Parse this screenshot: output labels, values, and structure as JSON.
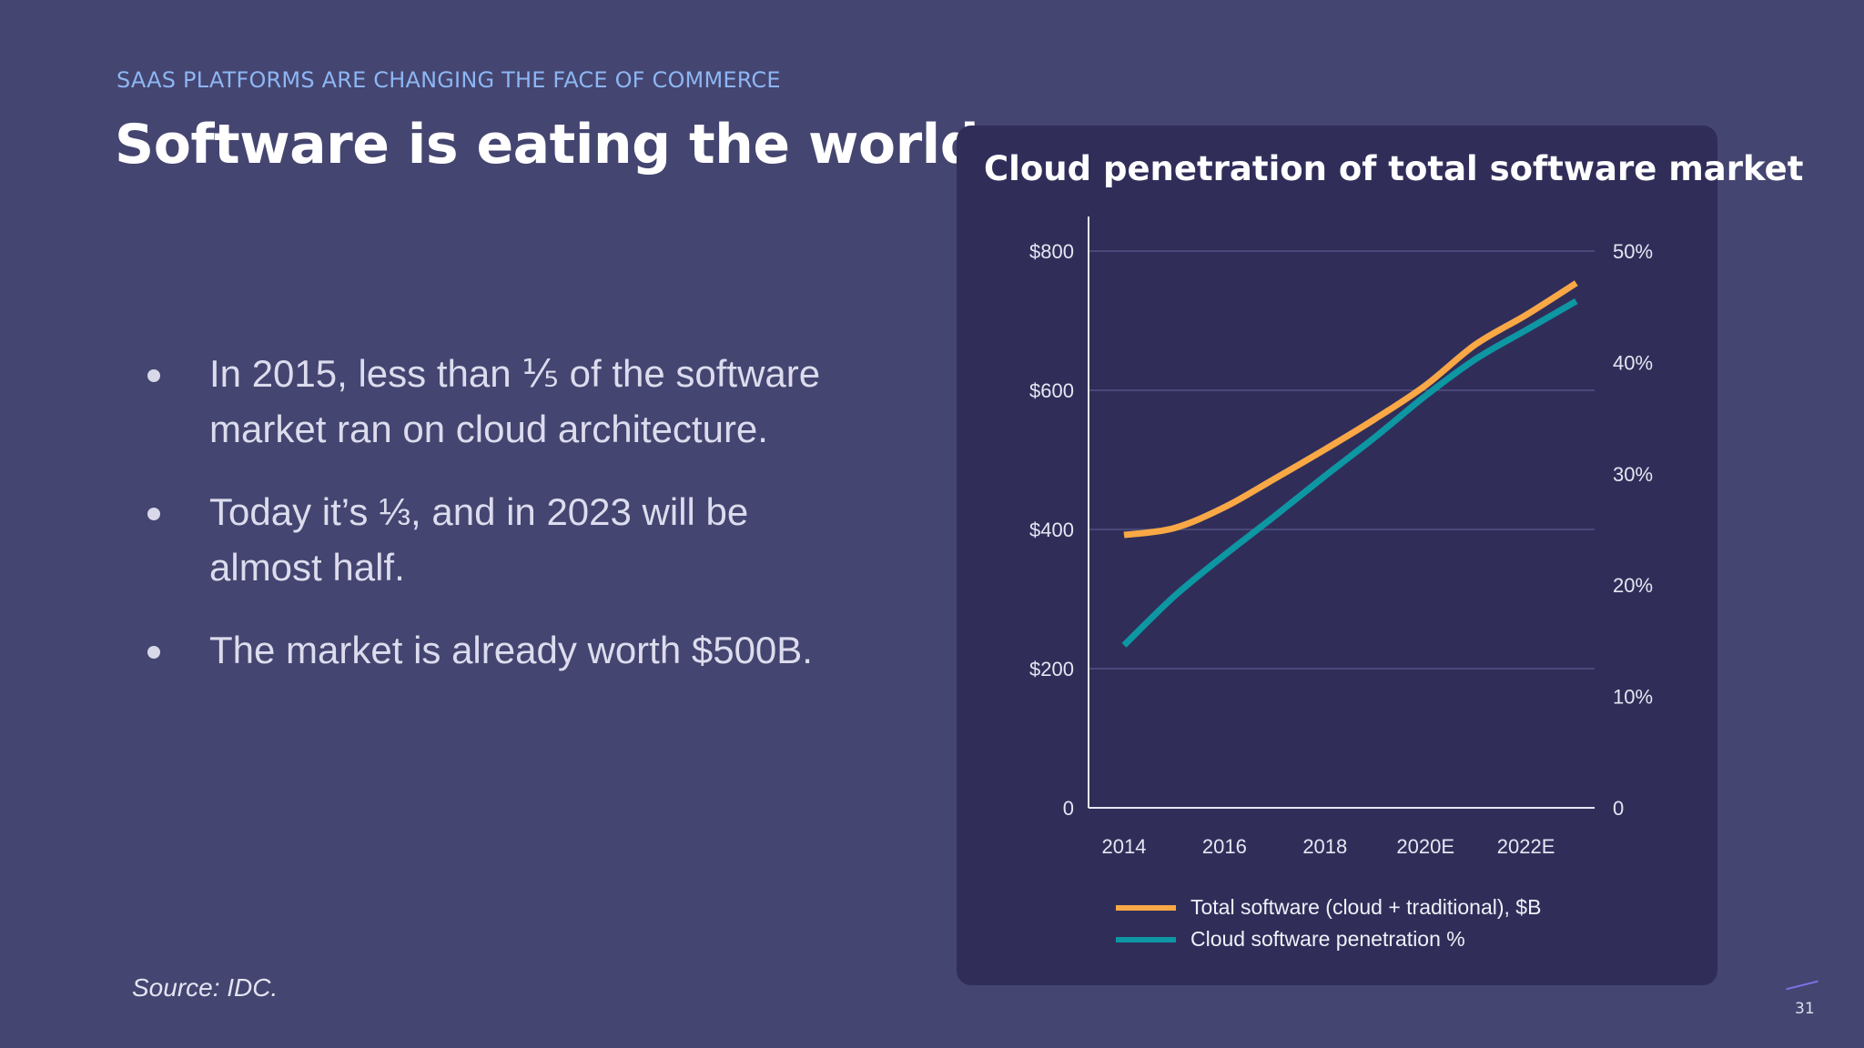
{
  "eyebrow": "SAAS PLATFORMS ARE CHANGING THE FACE OF COMMERCE",
  "title": "Software is eating the world",
  "bullets": [
    "In 2015, less than ⅕ of the software market ran on cloud architecture.",
    "Today it’s ⅓, and in 2023 will be almost half.",
    "The market is already worth $500B."
  ],
  "source": "Source: IDC.",
  "page_number": "31",
  "chart_data": {
    "type": "line",
    "title": "Cloud penetration of total software market",
    "x": [
      2014,
      2015,
      2016,
      2017,
      2018,
      2019,
      2020,
      2021,
      2022,
      2023
    ],
    "x_tick_values": [
      2014,
      2016,
      2018,
      2020,
      2022
    ],
    "x_tick_labels": [
      "2014",
      "2016",
      "2018",
      "2020E",
      "2022E"
    ],
    "y_left": {
      "ticks": [
        0,
        200,
        400,
        600,
        800
      ],
      "tick_labels": [
        "0",
        "$200",
        "$400",
        "$600",
        "$800"
      ],
      "range": [
        0,
        800
      ]
    },
    "y_right": {
      "ticks": [
        0,
        10,
        20,
        30,
        40,
        50
      ],
      "tick_labels": [
        "0",
        "10%",
        "20%",
        "30%",
        "40%",
        "50%"
      ],
      "range": [
        0,
        50
      ]
    },
    "grid": true,
    "legend_placement": "bottom",
    "series": [
      {
        "name": "Total software (cloud + traditional), $B",
        "axis": "left",
        "color": "#f9a845",
        "values": [
          392,
          402,
          432,
          473,
          515,
          559,
          607,
          666,
          708,
          754
        ]
      },
      {
        "name": "Cloud software penetration %",
        "axis": "right",
        "color": "#0d97a3",
        "values": [
          14.6,
          19.0,
          22.7,
          26.2,
          29.8,
          33.3,
          37.0,
          40.3,
          42.9,
          45.5
        ]
      }
    ]
  }
}
